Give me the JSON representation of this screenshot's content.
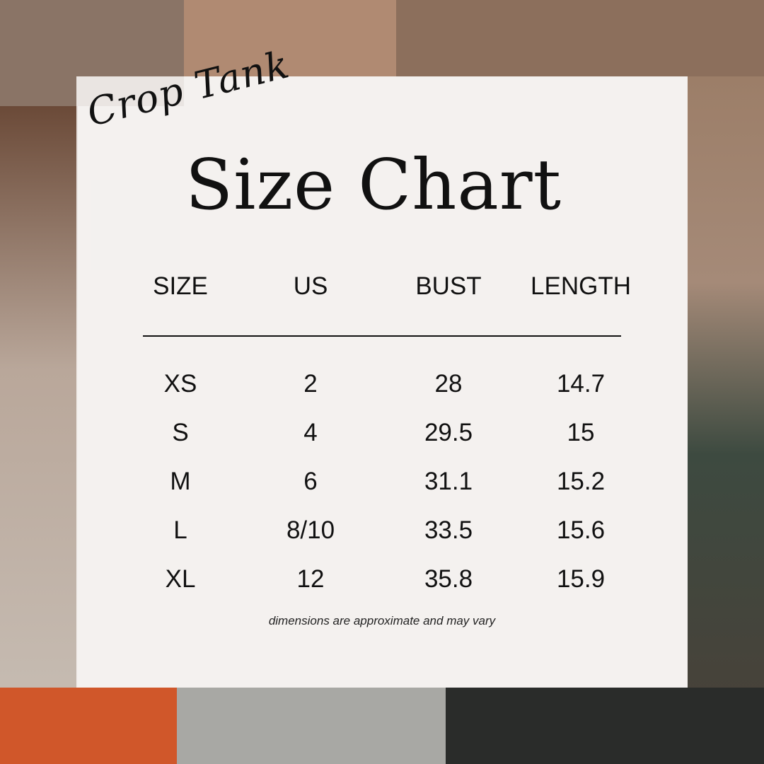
{
  "script_title": "Crop Tank",
  "title": "Size Chart",
  "chart_data": {
    "type": "table",
    "columns": [
      "SIZE",
      "US",
      "BUST",
      "LENGTH"
    ],
    "rows": [
      [
        "XS",
        "2",
        "28",
        "14.7"
      ],
      [
        "S",
        "4",
        "29.5",
        "15"
      ],
      [
        "M",
        "6",
        "31.1",
        "15.2"
      ],
      [
        "L",
        "8/10",
        "33.5",
        "15.6"
      ],
      [
        "XL",
        "12",
        "35.8",
        "15.9"
      ]
    ]
  },
  "footnote": "dimensions are approximate and may vary"
}
